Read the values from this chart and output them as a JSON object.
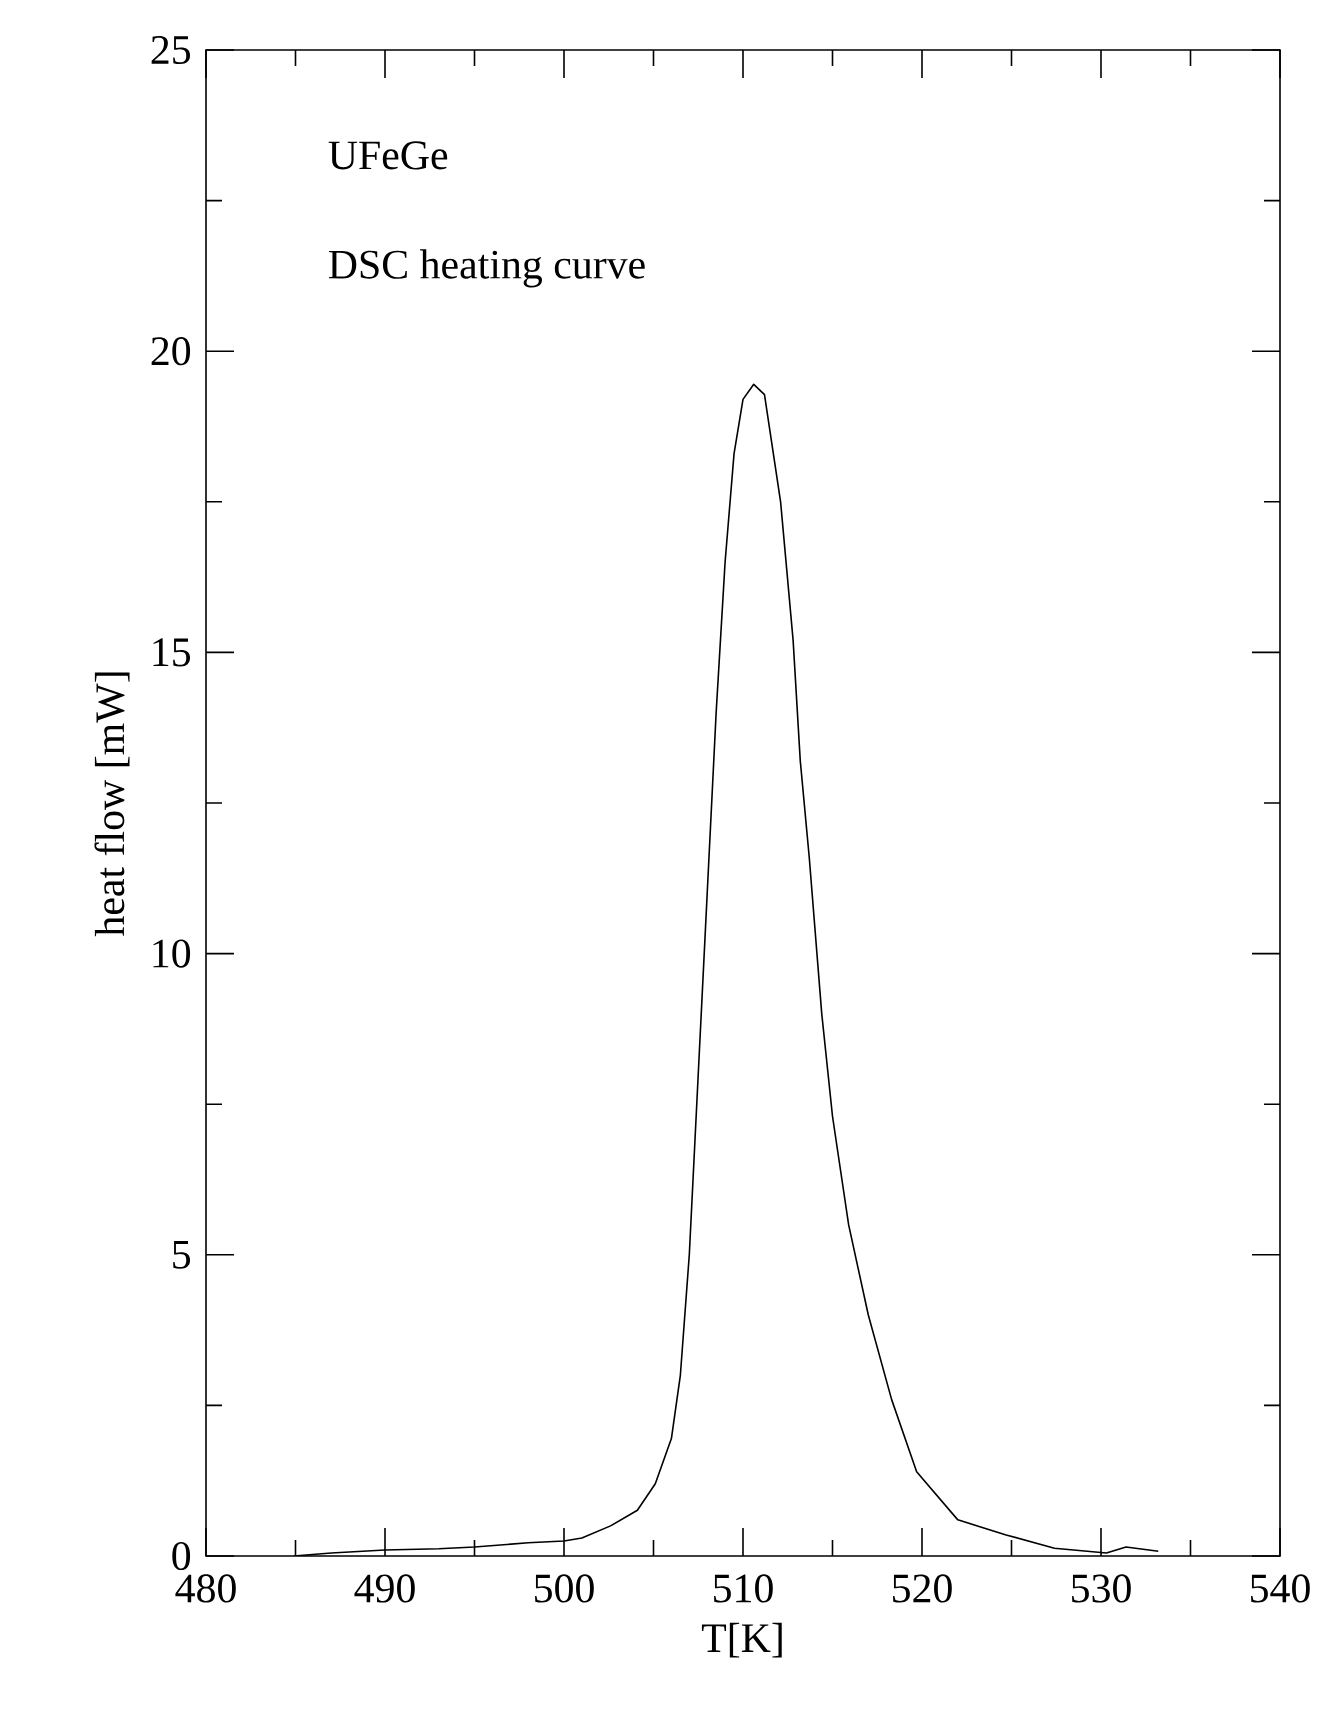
{
  "chart_data": {
    "type": "line",
    "xlabel": "T[K]",
    "ylabel": "heat flow [mW]",
    "annotations": [
      "UFeGe",
      "DSC heating curve"
    ],
    "xlim": [
      480,
      540
    ],
    "xticks": [
      480,
      490,
      500,
      510,
      520,
      530,
      540
    ],
    "ylim": [
      0,
      25
    ],
    "yticks": [
      0,
      5,
      10,
      15,
      20,
      25
    ],
    "marker": "none",
    "line_style": "solid",
    "series": [
      {
        "color": "#000000",
        "x": [
          484.9,
          487,
          490,
          493,
          495,
          498,
          500,
          501,
          502.6,
          504.1,
          505.1,
          506,
          506.5,
          507,
          507.5,
          508,
          508.5,
          509,
          509.5,
          510,
          510.6,
          511.2,
          512.1,
          512.8,
          513.2,
          513.7,
          514.4,
          515,
          515.9,
          517,
          518.3,
          519.7,
          522,
          524.7,
          527.4,
          530.3,
          531.4,
          533.2
        ],
        "values": [
          0,
          0.05,
          0.1,
          0.12,
          0.15,
          0.22,
          0.25,
          0.3,
          0.5,
          0.76,
          1.2,
          1.95,
          3,
          5,
          8,
          11,
          14,
          16.5,
          18.3,
          19.2,
          19.45,
          19.28,
          17.5,
          15.2,
          13.2,
          11.6,
          9,
          7.3,
          5.5,
          4,
          2.6,
          1.4,
          0.6,
          0.35,
          0.13,
          0.05,
          0.15,
          0.08
        ]
      }
    ]
  }
}
